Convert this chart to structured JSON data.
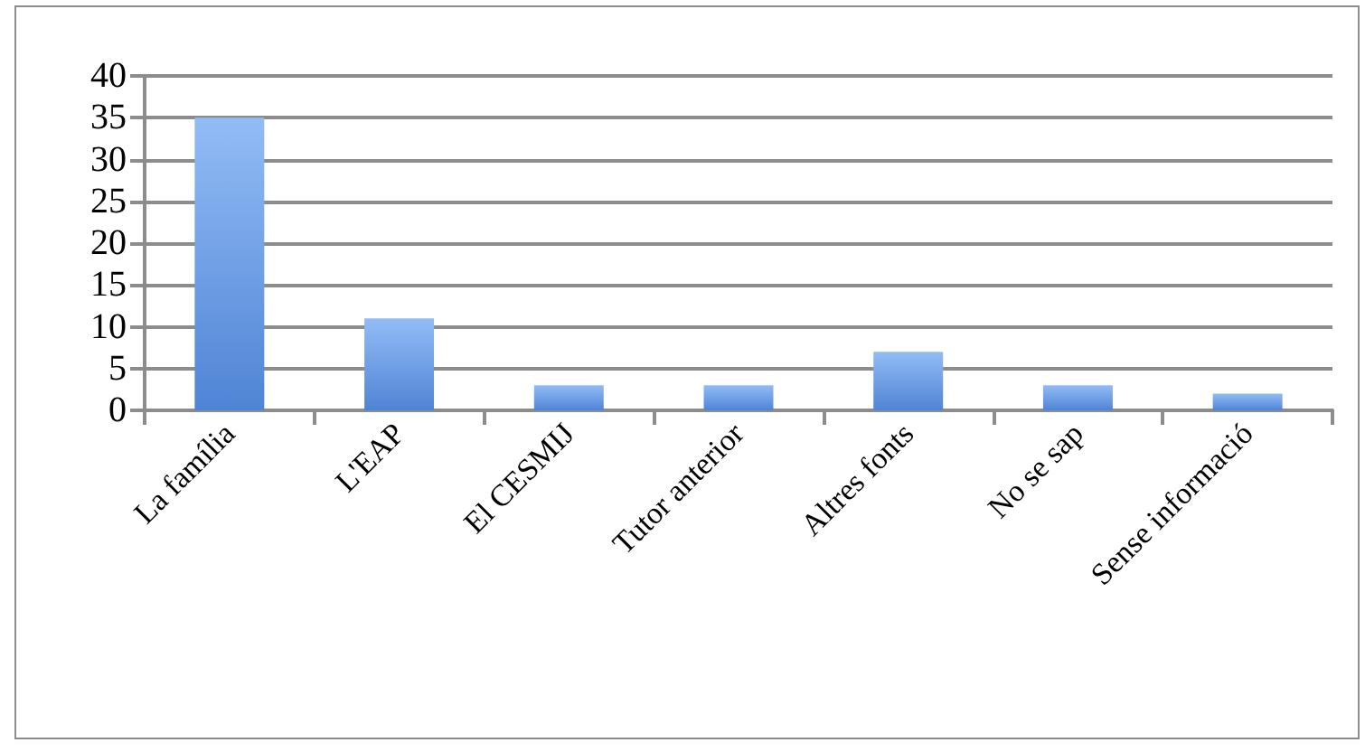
{
  "chart_data": {
    "type": "bar",
    "categories": [
      "La família",
      "L'EAP",
      "El CESMIJ",
      "Tutor anterior",
      "Altres fonts",
      "No se sap",
      "Sense informació"
    ],
    "values": [
      35,
      11,
      3,
      3,
      7,
      3,
      2
    ],
    "color": "#6ea6f2",
    "ylim": [
      0,
      40
    ],
    "yticks": [
      0,
      5,
      10,
      15,
      20,
      25,
      30,
      35,
      40
    ],
    "grid": "y"
  }
}
